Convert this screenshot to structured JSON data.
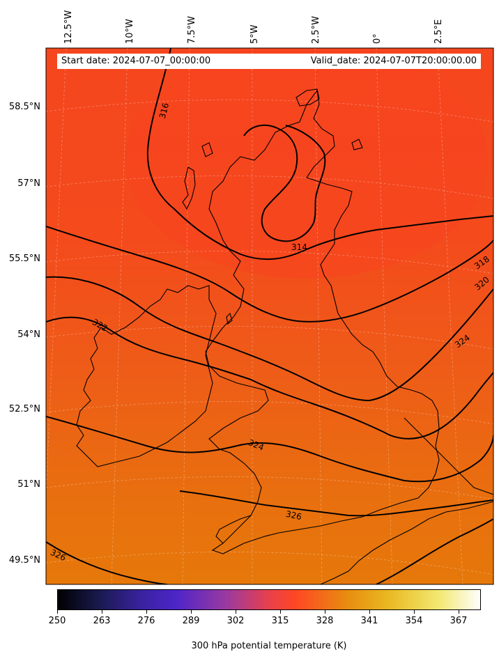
{
  "header": {
    "start_date": "Start date: 2024-07-07_00:00:00",
    "valid_date": "Valid_date: 2024-07-07T20:00:00.00"
  },
  "longitude_labels": [
    "12.5°W",
    "10°W",
    "7.5°W",
    "5°W",
    "2.5°W",
    "0°",
    "2.5°E"
  ],
  "latitude_labels": [
    "58.5°N",
    "57°N",
    "55.5°N",
    "54°N",
    "52.5°N",
    "51°N",
    "49.5°N"
  ],
  "contour_labels": [
    "316",
    "314",
    "318",
    "320",
    "324",
    "322",
    "324",
    "326",
    "326"
  ],
  "colorbar": {
    "title": "300 hPa potential temperature (K)",
    "ticks": [
      "250",
      "263",
      "276",
      "289",
      "302",
      "315",
      "328",
      "341",
      "354",
      "367"
    ],
    "range": [
      250,
      373
    ],
    "colormap": "CMRmap",
    "colors": [
      "#000000",
      "#1a1a50",
      "#4d25c8",
      "#9b3aa0",
      "#e8404c",
      "#ff4624",
      "#e88a10",
      "#e9b820",
      "#f2e870",
      "#ffffff"
    ]
  },
  "field_colors": {
    "north": "#f5461e",
    "middle": "#f05a1a",
    "south": "#e8720e"
  }
}
